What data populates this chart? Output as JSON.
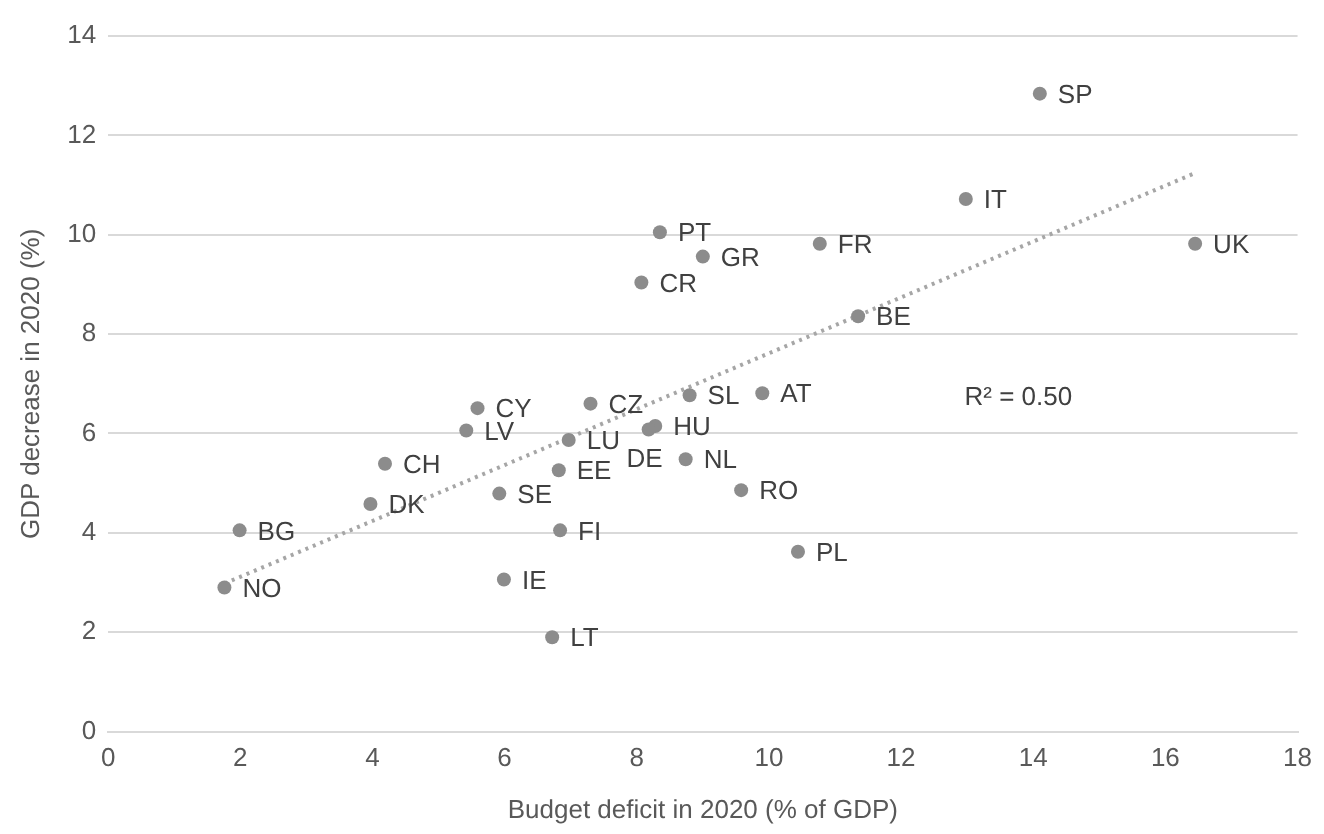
{
  "chart_data": {
    "type": "scatter",
    "xlabel": "Budget deficit in 2020 (% of GDP)",
    "ylabel": "GDP decrease in 2020 (%)",
    "xlim": [
      0,
      18
    ],
    "xticks": [
      0,
      2,
      4,
      6,
      8,
      10,
      12,
      14,
      16,
      18
    ],
    "ylim": [
      0,
      14
    ],
    "yticks": [
      0,
      2,
      4,
      6,
      8,
      10,
      12,
      14
    ],
    "grid": "y",
    "legend": false,
    "series": [
      {
        "color": "#8c8c8c",
        "marker": "circle",
        "x": [
          14.1,
          12.98,
          16.45,
          10.77,
          8.35,
          9.0,
          8.07,
          11.35,
          8.8,
          9.9,
          7.3,
          5.59,
          5.42,
          8.28,
          6.97,
          8.18,
          4.19,
          6.82,
          8.74,
          5.92,
          3.97,
          9.58,
          1.99,
          1.76,
          6.84,
          10.44,
          5.99,
          6.72
        ],
        "values": [
          12.84,
          10.72,
          9.82,
          9.82,
          10.05,
          9.56,
          9.04,
          8.36,
          6.77,
          6.81,
          6.6,
          6.51,
          6.06,
          6.15,
          5.87,
          6.08,
          5.39,
          5.26,
          5.48,
          4.79,
          4.58,
          4.86,
          4.05,
          2.9,
          4.05,
          3.62,
          3.06,
          1.9
        ]
      },
      {
        "type": "line",
        "color": "#a6a6a6",
        "marker": "none",
        "line_style": "dotted",
        "x": [
          1.76,
          16.43
        ],
        "values": [
          2.98,
          11.23
        ]
      }
    ],
    "annotations": [
      {
        "text": "SP",
        "x": 14.1,
        "y": 12.84
      },
      {
        "text": "IT",
        "x": 12.98,
        "y": 10.72
      },
      {
        "text": "UK",
        "x": 16.45,
        "y": 9.82
      },
      {
        "text": "FR",
        "x": 10.77,
        "y": 9.82
      },
      {
        "text": "PT",
        "x": 8.35,
        "y": 10.05
      },
      {
        "text": "GR",
        "x": 9.0,
        "y": 9.56
      },
      {
        "text": "CR",
        "x": 8.07,
        "y": 9.04
      },
      {
        "text": "BE",
        "x": 11.35,
        "y": 8.36
      },
      {
        "text": "SL",
        "x": 8.8,
        "y": 6.77
      },
      {
        "text": "AT",
        "x": 9.9,
        "y": 6.81
      },
      {
        "text": "CZ",
        "x": 7.3,
        "y": 6.6
      },
      {
        "text": "CY",
        "x": 5.59,
        "y": 6.51
      },
      {
        "text": "LV",
        "x": 5.42,
        "y": 6.06
      },
      {
        "text": "HU",
        "x": 8.28,
        "y": 6.15
      },
      {
        "text": "LU",
        "x": 6.97,
        "y": 5.87
      },
      {
        "text": "DE",
        "x": 8.18,
        "y": 6.08
      },
      {
        "text": "CH",
        "x": 4.19,
        "y": 5.39
      },
      {
        "text": "EE",
        "x": 6.82,
        "y": 5.26
      },
      {
        "text": "NL",
        "x": 8.74,
        "y": 5.48
      },
      {
        "text": "SE",
        "x": 5.92,
        "y": 4.79
      },
      {
        "text": "DK",
        "x": 3.97,
        "y": 4.58
      },
      {
        "text": "RO",
        "x": 9.58,
        "y": 4.86
      },
      {
        "text": "BG",
        "x": 1.99,
        "y": 4.05
      },
      {
        "text": "NO",
        "x": 1.76,
        "y": 2.9
      },
      {
        "text": "FI",
        "x": 6.84,
        "y": 4.05
      },
      {
        "text": "PL",
        "x": 10.44,
        "y": 3.62
      },
      {
        "text": "IE",
        "x": 5.99,
        "y": 3.06
      },
      {
        "text": "LT",
        "x": 6.72,
        "y": 1.9
      },
      "R² = 0.50"
    ]
  }
}
